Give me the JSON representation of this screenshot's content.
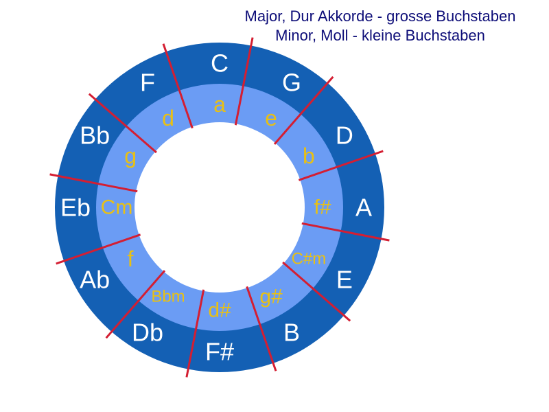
{
  "legend": {
    "line1": "Major, Dur Akkorde - grosse Buchstaben",
    "line2": "Minor, Moll - kleine Buchstaben"
  },
  "colors": {
    "outer_ring": "#1460b4",
    "inner_ring": "#6b9cf4",
    "divider": "#d41e32",
    "major_text": "#ffffff",
    "minor_text": "#e8c014",
    "legend_text": "#0d0d78"
  },
  "segments": [
    {
      "major": "C",
      "minor": "a"
    },
    {
      "major": "G",
      "minor": "e"
    },
    {
      "major": "D",
      "minor": "b"
    },
    {
      "major": "A",
      "minor": "f#"
    },
    {
      "major": "E",
      "minor": "C#m"
    },
    {
      "major": "B",
      "minor": "g#"
    },
    {
      "major": "F#",
      "minor": "d#"
    },
    {
      "major": "Db",
      "minor": "Bbm"
    },
    {
      "major": "Ab",
      "minor": "f"
    },
    {
      "major": "Eb",
      "minor": "Cm"
    },
    {
      "major": "Bb",
      "minor": "g"
    },
    {
      "major": "F",
      "minor": "d"
    }
  ]
}
